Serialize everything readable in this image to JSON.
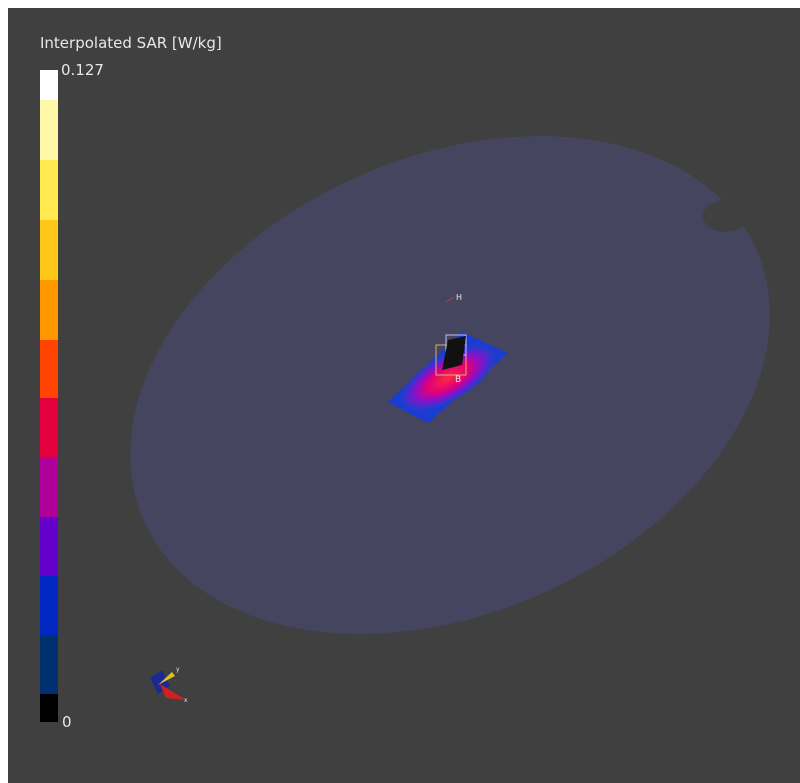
{
  "colorbar": {
    "title": "Interpolated SAR [W/kg]",
    "max": 0.127,
    "min": 0
  },
  "scene": {
    "markers": [
      "H",
      "B"
    ],
    "axes": [
      "y",
      "x"
    ]
  }
}
